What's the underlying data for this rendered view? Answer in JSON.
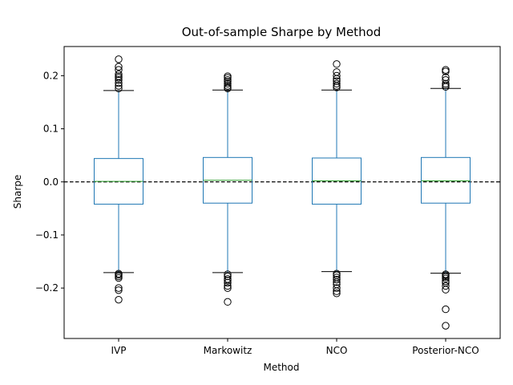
{
  "chart_data": {
    "type": "box",
    "title": "Out-of-sample Sharpe by Method",
    "xlabel": "Method",
    "ylabel": "Sharpe",
    "ylim": [
      -0.295,
      0.255
    ],
    "yticks": [
      0.2,
      0.1,
      0.0,
      -0.1,
      -0.2
    ],
    "ytick_labels": [
      "0.2",
      "0.1",
      "0.0",
      "−0.1",
      "−0.2"
    ],
    "reference_line": {
      "y": 0.0,
      "style": "dashed",
      "color": "#000000"
    },
    "grid": false,
    "colors": {
      "box": "#1f77b4",
      "median": "#2ca02c",
      "outlier": "#000000"
    },
    "categories": [
      "IVP",
      "Markowitz",
      "NCO",
      "Posterior-NCO"
    ],
    "boxes": [
      {
        "name": "IVP",
        "whisker_low": -0.171,
        "q1": -0.042,
        "median": 0.001,
        "q3": 0.044,
        "whisker_high": 0.172,
        "outliers": [
          0.231,
          0.217,
          0.211,
          0.203,
          0.199,
          0.196,
          0.192,
          0.186,
          0.181,
          0.176,
          -0.173,
          -0.175,
          -0.178,
          -0.181,
          -0.2,
          -0.204,
          -0.222
        ]
      },
      {
        "name": "Markowitz",
        "whisker_low": -0.171,
        "q1": -0.04,
        "median": 0.003,
        "q3": 0.046,
        "whisker_high": 0.173,
        "outliers": [
          0.199,
          0.196,
          0.192,
          0.189,
          0.185,
          0.181,
          0.178,
          0.176,
          -0.174,
          -0.178,
          -0.183,
          -0.186,
          -0.19,
          -0.196,
          -0.2,
          -0.226
        ]
      },
      {
        "name": "NCO",
        "whisker_low": -0.169,
        "q1": -0.042,
        "median": 0.002,
        "q3": 0.045,
        "whisker_high": 0.173,
        "outliers": [
          0.222,
          0.207,
          0.2,
          0.194,
          0.19,
          0.185,
          0.181,
          0.178,
          -0.173,
          -0.176,
          -0.18,
          -0.184,
          -0.189,
          -0.193,
          -0.2,
          -0.206,
          -0.21
        ]
      },
      {
        "name": "Posterior-NCO",
        "whisker_low": -0.172,
        "q1": -0.04,
        "median": 0.002,
        "q3": 0.046,
        "whisker_high": 0.176,
        "outliers": [
          0.211,
          0.208,
          0.197,
          0.192,
          0.185,
          0.182,
          0.179,
          -0.174,
          -0.176,
          -0.179,
          -0.182,
          -0.187,
          -0.19,
          -0.196,
          -0.203,
          -0.24,
          -0.271
        ]
      }
    ]
  }
}
